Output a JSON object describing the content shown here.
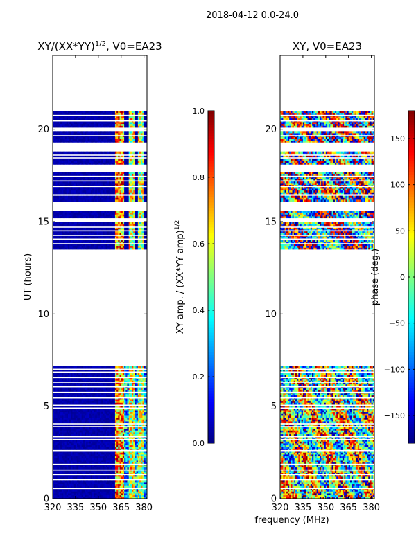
{
  "suptitle": "2018-04-12 0.0-24.0",
  "colors": {
    "axis": "#000000",
    "background": "#ffffff",
    "missing": "#ffffff",
    "jet_stops": [
      "#00007f",
      "#0000ff",
      "#0080ff",
      "#00ffff",
      "#80ff80",
      "#ffff00",
      "#ff8000",
      "#ff0000",
      "#7f0000"
    ]
  },
  "chart_data": [
    {
      "type": "heatmap",
      "id": "amp",
      "title_main": "XY/(XX*YY)",
      "title_sup": "1/2",
      "title_suffix": ", V0=EA23",
      "xlabel": "",
      "ylabel": "UT (hours)",
      "xlim": [
        320,
        382
      ],
      "ylim": [
        0,
        24
      ],
      "xticks": [
        320,
        335,
        350,
        365,
        380
      ],
      "yticks": [
        0,
        5,
        10,
        15,
        20
      ],
      "colorscale": "jet",
      "zlim": [
        0.0,
        1.0
      ],
      "x_cells": 62,
      "y_cells": 240,
      "data_bands_ut": [
        [
          0.0,
          1.0
        ],
        [
          1.1,
          7.2
        ],
        [
          13.5,
          15.0
        ],
        [
          15.2,
          15.6
        ],
        [
          16.1,
          16.4
        ],
        [
          16.5,
          17.7
        ],
        [
          18.1,
          18.8
        ],
        [
          19.3,
          19.9
        ],
        [
          20.1,
          21.0
        ]
      ],
      "gap_lines_ut": [
        0.55,
        1.3,
        1.55,
        1.85,
        2.6,
        3.2,
        3.35,
        3.9,
        4.05,
        4.9,
        5.05,
        5.45,
        5.75,
        6.05,
        6.3,
        6.55,
        6.85,
        7.0,
        13.8,
        14.05,
        14.25,
        14.5,
        14.7,
        16.9,
        17.2,
        17.45,
        18.45,
        18.6,
        19.65,
        20.45,
        20.75
      ],
      "colorbar": {
        "label_main": "XY amp. / (XX*YY amp)",
        "label_sup": "1/2",
        "ticks": [
          0.0,
          0.2,
          0.4,
          0.6,
          0.8,
          1.0
        ],
        "tick_labels": [
          "0.0",
          "0.2",
          "0.4",
          "0.6",
          "0.8",
          "1.0"
        ]
      }
    },
    {
      "type": "heatmap",
      "id": "phase",
      "title_main": "XY, V0=EA23",
      "xlabel": "frequency (MHz)",
      "ylabel": "",
      "xlim": [
        320,
        382
      ],
      "ylim": [
        0,
        24
      ],
      "xticks": [
        320,
        335,
        350,
        365,
        380
      ],
      "yticks": [
        0,
        5,
        10,
        15,
        20
      ],
      "colorscale": "jet",
      "zlim": [
        -180,
        180
      ],
      "x_cells": 62,
      "y_cells": 240,
      "data_bands_ut": [
        [
          0.0,
          1.0
        ],
        [
          1.1,
          7.2
        ],
        [
          13.5,
          15.0
        ],
        [
          15.2,
          15.6
        ],
        [
          16.1,
          16.4
        ],
        [
          16.5,
          17.7
        ],
        [
          18.1,
          18.8
        ],
        [
          19.3,
          19.9
        ],
        [
          20.1,
          21.0
        ]
      ],
      "gap_lines_ut": [
        0.55,
        1.3,
        1.55,
        1.85,
        2.6,
        3.2,
        3.35,
        3.9,
        4.05,
        4.9,
        5.05,
        5.45,
        5.75,
        6.05,
        6.3,
        6.55,
        6.85,
        7.0,
        13.8,
        14.05,
        14.25,
        14.5,
        14.7,
        16.9,
        17.2,
        17.45,
        18.45,
        18.6,
        19.65,
        20.45,
        20.75
      ],
      "colorbar": {
        "label_main": "phase (deg.)",
        "ticks": [
          -150,
          -100,
          -50,
          0,
          50,
          100,
          150
        ],
        "tick_labels": [
          "−150",
          "−100",
          "−50",
          "0",
          "50",
          "100",
          "150"
        ]
      }
    }
  ]
}
